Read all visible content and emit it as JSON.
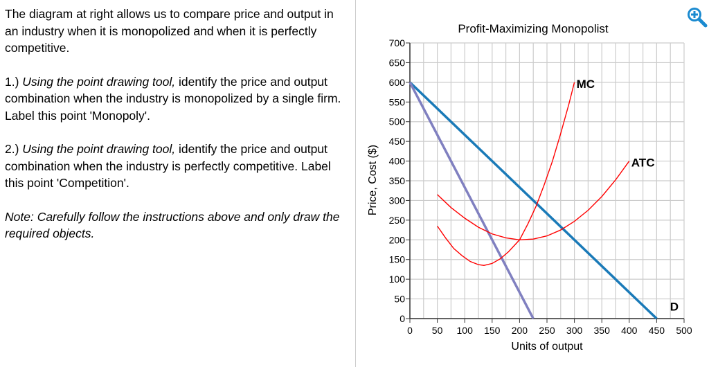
{
  "instructions": {
    "intro": "The diagram at right allows us to compare price and output in an industry when it is monopolized and when it is perfectly competitive.",
    "step1_num": "1.) ",
    "step1_italic": "Using the point drawing tool,",
    "step1_rest": " identify the price and output combination when the industry is monopolized by a single firm. Label this point 'Monopoly'.",
    "step2_num": "2.) ",
    "step2_italic": "Using the point drawing tool,",
    "step2_rest": " identify the price and output combination when the industry is perfectly competitive. Label this point 'Competition'.",
    "note": "Note: Carefully follow the instructions above and only draw the required objects."
  },
  "colors": {
    "demand": "#1a7ab8",
    "mr": "#8080c0",
    "cost": "#ff0000",
    "zoom": "#1a8ad0"
  },
  "chart_data": {
    "type": "line",
    "title": "Profit-Maximizing Monopolist",
    "xlabel": "Units of output",
    "ylabel": "Price, Cost ($)",
    "xlim": [
      0,
      500
    ],
    "ylim": [
      0,
      700
    ],
    "xticks": [
      0,
      50,
      100,
      150,
      200,
      250,
      300,
      350,
      400,
      450,
      500
    ],
    "yticks": [
      0,
      50,
      100,
      150,
      200,
      250,
      300,
      350,
      400,
      450,
      500,
      550,
      600,
      650,
      700
    ],
    "grid": true,
    "series": [
      {
        "name": "D",
        "label": "D",
        "points": [
          [
            0,
            600
          ],
          [
            450,
            0
          ]
        ]
      },
      {
        "name": "MR",
        "label": "",
        "points": [
          [
            0,
            600
          ],
          [
            225,
            0
          ]
        ]
      },
      {
        "name": "MC",
        "label": "MC",
        "points": [
          [
            50,
            235
          ],
          [
            65,
            205
          ],
          [
            80,
            178
          ],
          [
            95,
            160
          ],
          [
            110,
            145
          ],
          [
            125,
            137
          ],
          [
            135,
            135
          ],
          [
            150,
            140
          ],
          [
            165,
            152
          ],
          [
            180,
            170
          ],
          [
            200,
            200
          ],
          [
            215,
            240
          ],
          [
            230,
            285
          ],
          [
            245,
            340
          ],
          [
            260,
            400
          ],
          [
            275,
            470
          ],
          [
            290,
            545
          ],
          [
            300,
            600
          ]
        ]
      },
      {
        "name": "ATC",
        "label": "ATC",
        "points": [
          [
            50,
            315
          ],
          [
            75,
            282
          ],
          [
            100,
            255
          ],
          [
            125,
            232
          ],
          [
            150,
            215
          ],
          [
            175,
            205
          ],
          [
            200,
            200
          ],
          [
            225,
            202
          ],
          [
            250,
            210
          ],
          [
            275,
            225
          ],
          [
            300,
            247
          ],
          [
            325,
            275
          ],
          [
            350,
            310
          ],
          [
            375,
            352
          ],
          [
            400,
            400
          ]
        ]
      }
    ]
  }
}
